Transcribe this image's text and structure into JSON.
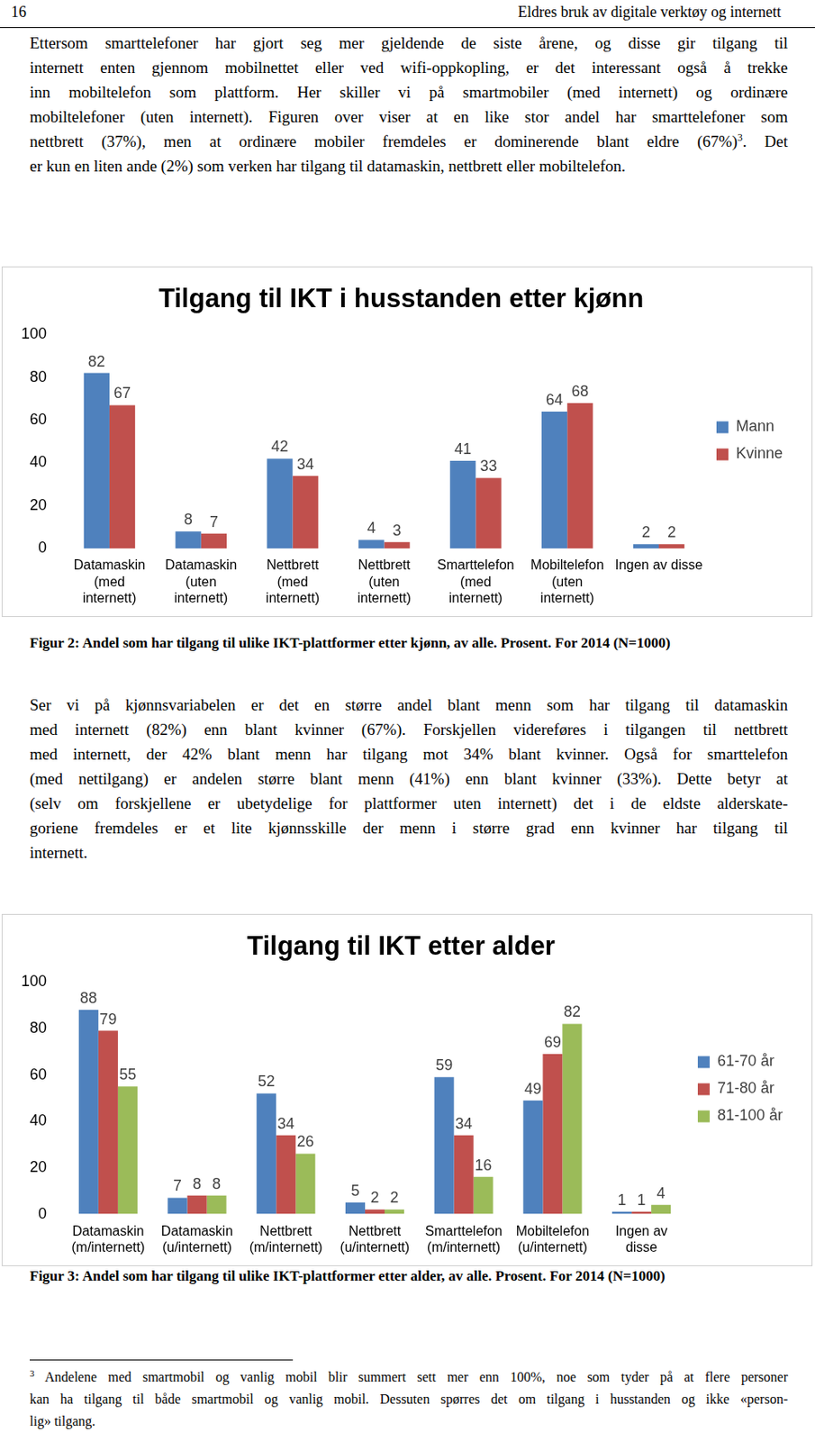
{
  "header": {
    "page_number": "16",
    "title": "Eldres bruk av digitale verktøy og internett"
  },
  "paragraphs": [
    [
      [
        "Ettersom smarttelefoner har gjort seg mer gjeldende de siste årene, og disse gir tilgang til"
      ],
      [
        "internett enten gjennom mobilnettet eller ved wifi-oppkopling, er det interessant også å trekke"
      ],
      [
        "inn mobiltelefon som plattform. Her skiller vi på smartmobiler (med internett) og ordinære"
      ],
      [
        "mobiltelefoner (uten internett). Figuren over viser at en like stor andel har smarttelefoner som"
      ],
      [
        "nettbrett (37%), men at ordinære mobiler fremdeles er dominerende blant eldre (67%)",
        {
          "sup": "3"
        },
        ". Det"
      ],
      [
        "er kun en liten ande (2%) som verken har tilgang til datamaskin, nettbrett eller mobiltelefon."
      ]
    ],
    [
      [
        "Ser vi på kjønnsvariabelen er det en større andel blant menn som har tilgang til datamaskin"
      ],
      [
        "med internett (82%) enn blant kvinner (67%). Forskjellen videreføres i tilgangen til nettbrett"
      ],
      [
        "med internett, der 42% blant menn har tilgang mot 34% blant kvinner. Også for smarttelefon"
      ],
      [
        "(med nettilgang) er andelen større blant menn (41%) enn blant kvinner (33%). Dette betyr at"
      ],
      [
        "(selv om forskjellene er ubetydelige for plattformer uten internett) det i de eldste alderskate-"
      ],
      [
        "goriene fremdeles er et lite kjønnsskille der menn i større grad enn kvinner har tilgang til"
      ],
      [
        "internett."
      ]
    ]
  ],
  "chart_data": [
    {
      "type": "bar",
      "title": "Tilgang til IKT i husstanden etter kjønn",
      "categories": [
        [
          "Datamaskin",
          "(med",
          "internett)"
        ],
        [
          "Datamaskin",
          "(uten",
          "internett)"
        ],
        [
          "Nettbrett",
          "(med",
          "internett)"
        ],
        [
          "Nettbrett",
          "(uten",
          "internett)"
        ],
        [
          "Smarttelefon",
          "(med",
          "internett)"
        ],
        [
          "Mobiltelefon",
          "(uten",
          "internett)"
        ],
        [
          "Ingen av disse"
        ]
      ],
      "series": [
        {
          "name": "Mann",
          "color": "#4f81bd",
          "values": [
            82,
            8,
            42,
            4,
            41,
            64,
            2
          ]
        },
        {
          "name": "Kvinne",
          "color": "#c0504d",
          "values": [
            67,
            7,
            34,
            3,
            33,
            68,
            2
          ]
        }
      ],
      "ylim": [
        0,
        100
      ],
      "yticks": [
        0,
        20,
        40,
        60,
        80,
        100
      ],
      "grid": false,
      "legend": "right",
      "data_labels": true
    },
    {
      "type": "bar",
      "title": "Tilgang til IKT etter alder",
      "categories": [
        [
          "Datamaskin",
          "(m/internett)"
        ],
        [
          "Datamaskin",
          "(u/internett)"
        ],
        [
          "Nettbrett",
          "(m/internett)"
        ],
        [
          "Nettbrett",
          "(u/internett)"
        ],
        [
          "Smarttelefon",
          "(m/internett)"
        ],
        [
          "Mobiltelefon",
          "(u/internett)"
        ],
        [
          "Ingen av",
          "disse"
        ]
      ],
      "series": [
        {
          "name": "61-70 år",
          "color": "#4f81bd",
          "values": [
            88,
            7,
            52,
            5,
            59,
            49,
            1
          ]
        },
        {
          "name": "71-80 år",
          "color": "#c0504d",
          "values": [
            79,
            8,
            34,
            2,
            34,
            69,
            1
          ]
        },
        {
          "name": "81-100 år",
          "color": "#9bbb59",
          "values": [
            55,
            8,
            26,
            2,
            16,
            82,
            4
          ]
        }
      ],
      "ylim": [
        0,
        100
      ],
      "yticks": [
        0,
        20,
        40,
        60,
        80,
        100
      ],
      "grid": false,
      "legend": "right",
      "data_labels": true
    }
  ],
  "captions": [
    "Figur 2: Andel som har tilgang til ulike IKT-plattformer etter kjønn, av alle. Prosent. For 2014 (N=1000)",
    "Figur 3: Andel som har tilgang til ulike IKT-plattformer etter alder, av alle. Prosent. For 2014 (N=1000)"
  ],
  "footnote": [
    [
      {
        "sup": "3"
      },
      " Andelene med smartmobil og vanlig mobil blir summert sett mer enn 100%, noe som tyder på at flere personer"
    ],
    [
      "kan ha tilgang til både smartmobil og vanlig mobil. Dessuten spørres det om tilgang i husstanden og ikke «person-"
    ],
    [
      "lig» tilgang."
    ]
  ]
}
